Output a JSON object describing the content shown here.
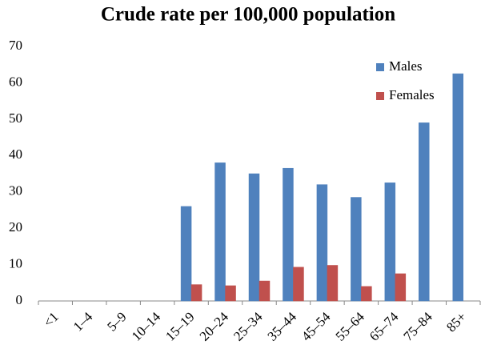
{
  "chart_data": {
    "type": "bar",
    "title": "Crude rate per 100,000 population",
    "categories": [
      "<1",
      "1–4",
      "5–9",
      "10–14",
      "15–19",
      "20–24",
      "25–34",
      "35–44",
      "45–54",
      "55–64",
      "65–74",
      "75–84",
      "85+"
    ],
    "series": [
      {
        "name": "Males",
        "color": "#4f81bd",
        "values": [
          0,
          0,
          0,
          0,
          26,
          38,
          35,
          36.5,
          32,
          28.5,
          32.5,
          49,
          62.5
        ]
      },
      {
        "name": "Females",
        "color": "#c0504d",
        "values": [
          0,
          0,
          0,
          0,
          4.5,
          4.2,
          5.5,
          9.3,
          9.8,
          4,
          7.5,
          0,
          0
        ]
      }
    ],
    "ylim": [
      0,
      70
    ],
    "yticks": [
      0,
      10,
      20,
      30,
      40,
      50,
      60,
      70
    ],
    "grid": false,
    "legend": "upper right"
  }
}
